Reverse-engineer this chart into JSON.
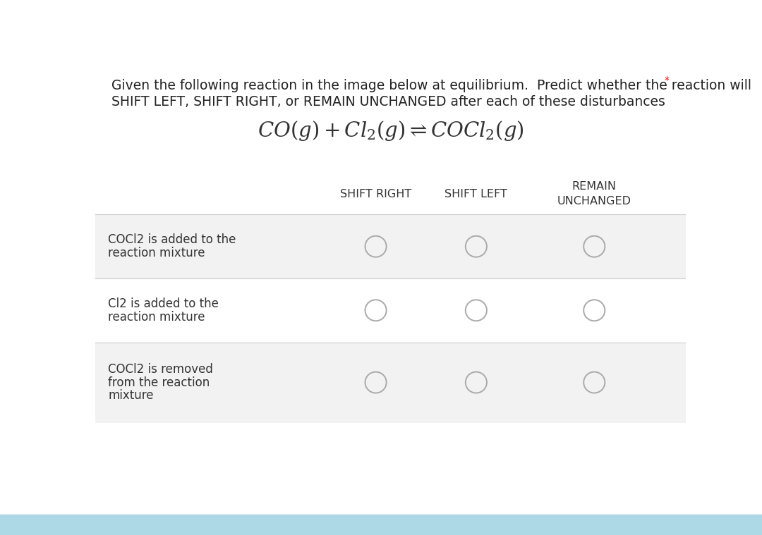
{
  "title_line1": "Given the following reaction in the image below at equilibrium.  Predict whether the reaction will",
  "title_line2": "SHIFT LEFT, SHIFT RIGHT, or REMAIN UNCHANGED after each of these disturbances",
  "asterisk": "*",
  "col_headers": [
    "SHIFT RIGHT",
    "SHIFT LEFT",
    "REMAIN\nUNCHANGED"
  ],
  "row_labels": [
    [
      "COCl2 is added to the",
      "reaction mixture"
    ],
    [
      "Cl2 is added to the",
      "reaction mixture"
    ],
    [
      "COCl2 is removed",
      "from the reaction",
      "mixture"
    ]
  ],
  "bg_color": "#ffffff",
  "header_row_bg": "#ffffff",
  "row_bg_alt": "#f2f2f2",
  "row_bg_white": "#ffffff",
  "circle_color": "#aaaaaa",
  "text_color": "#333333",
  "title_color": "#222222",
  "bottom_bar_color": "#add8e6",
  "font_size_title": 13.5,
  "font_size_equation": 21,
  "font_size_header": 11.5,
  "font_size_row": 12,
  "bottom_bar_height": 0.038
}
